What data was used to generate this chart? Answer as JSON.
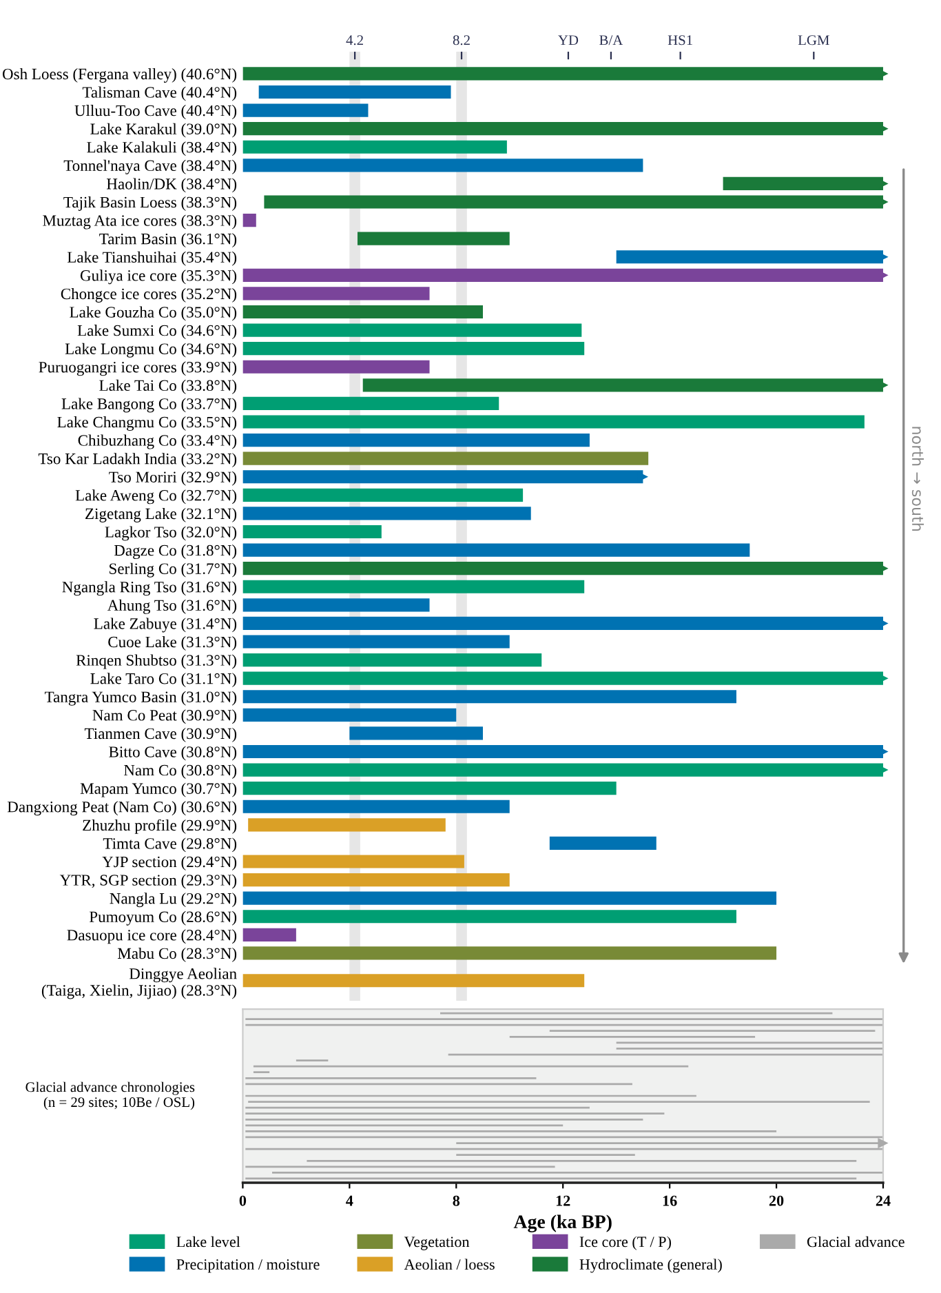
{
  "chart_data": [
    {
      "type": "bar",
      "orientation": "horizontal",
      "tick_labels": "y",
      "legend": "bottom",
      "xlim": [
        0,
        24
      ],
      "x2lim": [
        0,
        24
      ],
      "x2ticks": [
        {
          "value": 4.2,
          "label": "4.2"
        },
        {
          "value": 8.2,
          "label": "8.2"
        },
        {
          "value": 12.2,
          "label": "YD"
        },
        {
          "value": 13.8,
          "label": "B/A"
        },
        {
          "value": 16.4,
          "label": "HS1"
        },
        {
          "value": 21.4,
          "label": "LGM"
        }
      ],
      "bands": [
        {
          "axis": "x",
          "from": 4.0,
          "to": 4.4,
          "color": "#e6e6e6"
        },
        {
          "axis": "x",
          "from": 8.0,
          "to": 8.4,
          "color": "#e6e6e6"
        }
      ],
      "annotations": [
        "north → south"
      ],
      "categories": [
        "Osh Loess (Fergana valley) (40.6°N)",
        "Talisman Cave (40.4°N)",
        "Ulluu-Too Cave (40.4°N)",
        "Lake Karakul (39.0°N)",
        "Lake Kalakuli (38.4°N)",
        "Tonnel'naya Cave (38.4°N)",
        "Haolin/DK (38.4°N)",
        "Tajik Basin Loess (38.3°N)",
        "Muztag Ata ice cores (38.3°N)",
        "Tarim Basin (36.1°N)",
        "Lake Tianshuihai (35.4°N)",
        "Guliya ice core (35.3°N)",
        "Chongce ice cores (35.2°N)",
        "Lake Gouzha Co (35.0°N)",
        "Lake Sumxi Co (34.6°N)",
        "Lake Longmu Co (34.6°N)",
        "Puruogangri ice cores (33.9°N)",
        "Lake Tai Co (33.8°N)",
        "Lake Bangong Co (33.7°N)",
        "Lake Changmu Co (33.5°N)",
        "Chibuzhang Co (33.4°N)",
        "Tso Kar Ladakh India (33.2°N)",
        "Tso Moriri (32.9°N)",
        "Lake Aweng Co (32.7°N)",
        "Zigetang Lake (32.1°N)",
        "Lagkor Tso (32.0°N)",
        "Dagze Co (31.8°N)",
        "Serling Co (31.7°N)",
        "Ngangla Ring Tso (31.6°N)",
        "Ahung Tso (31.6°N)",
        "Lake Zabuye (31.4°N)",
        "Cuoe Lake (31.3°N)",
        "Rinqen Shubtso (31.3°N)",
        "Lake Taro Co (31.1°N)",
        "Tangra Yumco Basin (31.0°N)",
        "Nam Co Peat (30.9°N)",
        "Tianmen Cave (30.9°N)",
        "Bitto Cave (30.8°N)",
        "Nam Co (30.8°N)",
        "Mapam Yumco (30.7°N)",
        "Dangxiong Peat (Nam Co) (30.6°N)",
        "Zhuzhu profile (29.9°N)",
        "Timta Cave (29.8°N)",
        "YJP section (29.4°N)",
        "YTR, SGP section (29.3°N)",
        "Nangla Lu (29.2°N)",
        "Pumoyum Co (28.6°N)",
        "Dasuopu ice core (28.4°N)",
        "Mabu Co (28.3°N)",
        "Dinggye Aeolian\n(Taiga, Xielin, Jijiao) (28.3°N)"
      ],
      "series": [
        {
          "name": "Lake level",
          "color": "#009e73",
          "values": [
            null,
            null,
            null,
            null,
            9.9,
            null,
            null,
            null,
            null,
            null,
            null,
            null,
            null,
            null,
            12.7,
            12.8,
            null,
            null,
            9.6,
            23.3,
            null,
            null,
            null,
            10.5,
            null,
            5.2,
            null,
            null,
            12.8,
            null,
            null,
            null,
            11.2,
            24,
            null,
            null,
            null,
            null,
            24,
            14.0,
            null,
            null,
            null,
            null,
            null,
            null,
            18.5,
            null,
            null,
            null
          ]
        },
        {
          "name": "Precipitation / moisture",
          "color": "#0072b2",
          "values": [
            null,
            7.2,
            4.7,
            null,
            null,
            15.0,
            null,
            null,
            null,
            null,
            10.0,
            null,
            null,
            null,
            null,
            null,
            null,
            null,
            null,
            null,
            13.0,
            null,
            15.0,
            null,
            10.8,
            null,
            19.0,
            null,
            null,
            7.0,
            24,
            10.0,
            null,
            null,
            18.5,
            8.0,
            5.0,
            24,
            null,
            null,
            10.0,
            null,
            4.0,
            null,
            null,
            20.0,
            null,
            null,
            null,
            null
          ],
          "base": [
            null,
            0.6,
            0,
            null,
            null,
            0,
            null,
            null,
            null,
            null,
            14.0,
            null,
            null,
            null,
            null,
            null,
            null,
            null,
            null,
            null,
            0,
            null,
            0,
            null,
            0,
            null,
            0,
            null,
            null,
            0,
            0,
            0,
            null,
            null,
            0,
            0,
            4.0,
            0,
            null,
            null,
            0,
            null,
            11.5,
            null,
            null,
            0,
            null,
            null,
            null,
            null
          ]
        },
        {
          "name": "Vegetation",
          "color": "#788a36",
          "values": [
            null,
            null,
            null,
            null,
            null,
            null,
            null,
            null,
            null,
            null,
            null,
            null,
            null,
            null,
            null,
            null,
            null,
            null,
            null,
            null,
            null,
            15.2,
            null,
            null,
            null,
            null,
            null,
            null,
            null,
            null,
            null,
            null,
            null,
            null,
            null,
            null,
            null,
            null,
            null,
            null,
            null,
            null,
            null,
            null,
            null,
            null,
            null,
            null,
            20.0,
            null
          ]
        },
        {
          "name": "Aeolian / loess",
          "color": "#daa026",
          "values": [
            null,
            null,
            null,
            null,
            null,
            null,
            null,
            null,
            null,
            null,
            null,
            null,
            null,
            null,
            null,
            null,
            null,
            null,
            null,
            null,
            null,
            null,
            null,
            null,
            null,
            null,
            null,
            null,
            null,
            null,
            null,
            null,
            null,
            null,
            null,
            null,
            null,
            null,
            null,
            null,
            null,
            7.4,
            null,
            8.3,
            10.0,
            null,
            null,
            null,
            null,
            12.8
          ],
          "base": [
            null,
            null,
            null,
            null,
            null,
            null,
            null,
            null,
            null,
            null,
            null,
            null,
            null,
            null,
            null,
            null,
            null,
            null,
            null,
            null,
            null,
            null,
            null,
            null,
            null,
            null,
            null,
            null,
            null,
            null,
            null,
            null,
            null,
            null,
            null,
            null,
            null,
            null,
            null,
            null,
            null,
            0.2,
            null,
            0,
            0,
            null,
            null,
            null,
            null,
            0
          ]
        },
        {
          "name": "Ice core (T / P)",
          "color": "#7a449a",
          "values": [
            null,
            null,
            null,
            null,
            null,
            null,
            null,
            null,
            0.5,
            null,
            null,
            24,
            7.0,
            null,
            null,
            null,
            7.0,
            null,
            null,
            null,
            null,
            null,
            null,
            null,
            null,
            null,
            null,
            null,
            null,
            null,
            null,
            null,
            null,
            null,
            null,
            null,
            null,
            null,
            null,
            null,
            null,
            null,
            null,
            null,
            null,
            null,
            null,
            2.0,
            null,
            null
          ]
        },
        {
          "name": "Hydroclimate (general)",
          "color": "#1a7a3a",
          "values": [
            24,
            null,
            null,
            24,
            null,
            null,
            6.0,
            23.2,
            null,
            5.7,
            null,
            null,
            null,
            9.0,
            null,
            null,
            null,
            19.5,
            null,
            null,
            null,
            null,
            null,
            null,
            null,
            null,
            null,
            24,
            null,
            null,
            null,
            null,
            null,
            null,
            null,
            null,
            null,
            null,
            null,
            null,
            null,
            null,
            null,
            null,
            null,
            null,
            null,
            null,
            null,
            null
          ],
          "base": [
            0,
            null,
            null,
            0,
            null,
            null,
            18.0,
            0.8,
            null,
            4.3,
            null,
            null,
            null,
            0,
            null,
            null,
            null,
            4.5,
            null,
            null,
            null,
            null,
            null,
            null,
            null,
            null,
            null,
            0,
            null,
            null,
            null,
            null,
            null,
            null,
            null,
            null,
            null,
            null,
            null,
            null,
            null,
            null,
            null,
            null,
            null,
            null,
            null,
            null,
            null,
            null
          ]
        },
        {
          "type": "scatter",
          "marker": "triangle",
          "values": [
            24,
            null,
            null,
            24,
            null,
            null,
            24,
            24,
            null,
            null,
            24,
            24,
            null,
            null,
            null,
            null,
            null,
            24,
            null,
            null,
            null,
            null,
            15.0,
            null,
            null,
            null,
            null,
            24,
            null,
            null,
            24,
            null,
            null,
            24,
            null,
            null,
            null,
            24,
            24,
            null,
            null,
            null,
            null,
            null,
            null,
            null,
            null,
            null,
            null,
            null
          ],
          "colors": [
            "#1a7a3a",
            null,
            null,
            "#1a7a3a",
            null,
            null,
            "#1a7a3a",
            "#1a7a3a",
            null,
            null,
            "#0072b2",
            "#7a449a",
            null,
            null,
            null,
            null,
            null,
            "#1a7a3a",
            null,
            null,
            null,
            null,
            "#0072b2",
            null,
            null,
            null,
            null,
            "#1a7a3a",
            null,
            null,
            "#0072b2",
            null,
            null,
            "#009e73",
            null,
            null,
            null,
            "#0072b2",
            "#009e73",
            null,
            null,
            null,
            null,
            null,
            null,
            null,
            null,
            null,
            null,
            null
          ]
        }
      ]
    },
    {
      "type": "bar",
      "orientation": "horizontal",
      "tick_labels": "x",
      "legend": "bottom",
      "xlim": [
        0,
        24
      ],
      "xticks": [
        0,
        4,
        8,
        12,
        16,
        20,
        24
      ],
      "xlabel": "Age (ka BP)",
      "ylabel": "Glacial advance chronologies\n(n = 29 sites; 10Be / OSL)",
      "categories": [
        null,
        null,
        null,
        null,
        null,
        null,
        null,
        null,
        null,
        null,
        null,
        null,
        null,
        null,
        null,
        null,
        null,
        null,
        null,
        null,
        null,
        null,
        null,
        null,
        null,
        null,
        null,
        null,
        null
      ],
      "series": [
        {
          "name": "Glacial advance",
          "color": "#aaaaaa",
          "values": [
            14.7,
            23.9,
            23.9,
            12.2,
            9.2,
            10.0,
            10.0,
            16.3,
            1.2,
            16.3,
            0.6,
            10.9,
            14.5,
            null,
            16.9,
            23.3,
            12.9,
            15.7,
            14.9,
            11.9,
            19.9,
            23.9,
            16.0,
            23.9,
            6.7,
            20.6,
            11.6,
            22.9,
            22.9
          ],
          "base": [
            7.4,
            0.1,
            0.1,
            11.5,
            10.0,
            14.0,
            14.0,
            7.7,
            2.0,
            0.4,
            0.4,
            0.1,
            0.1,
            null,
            0.1,
            0.2,
            0.1,
            0.1,
            0.1,
            0.1,
            0.1,
            0.1,
            8.0,
            0.1,
            8.0,
            2.4,
            0.1,
            1.1,
            0.1
          ]
        },
        {
          "type": "scatter",
          "marker": "triangle",
          "values": [
            null,
            null,
            null,
            null,
            null,
            null,
            null,
            null,
            null,
            null,
            null,
            null,
            null,
            null,
            null,
            null,
            null,
            null,
            null,
            null,
            null,
            null,
            24,
            null,
            null,
            null,
            null,
            null,
            null
          ],
          "colors": [
            null,
            null,
            null,
            null,
            null,
            null,
            null,
            null,
            null,
            null,
            null,
            null,
            null,
            null,
            null,
            null,
            null,
            null,
            null,
            null,
            null,
            null,
            "#aaaaaa",
            null,
            null,
            null,
            null,
            null,
            null
          ]
        }
      ]
    }
  ]
}
